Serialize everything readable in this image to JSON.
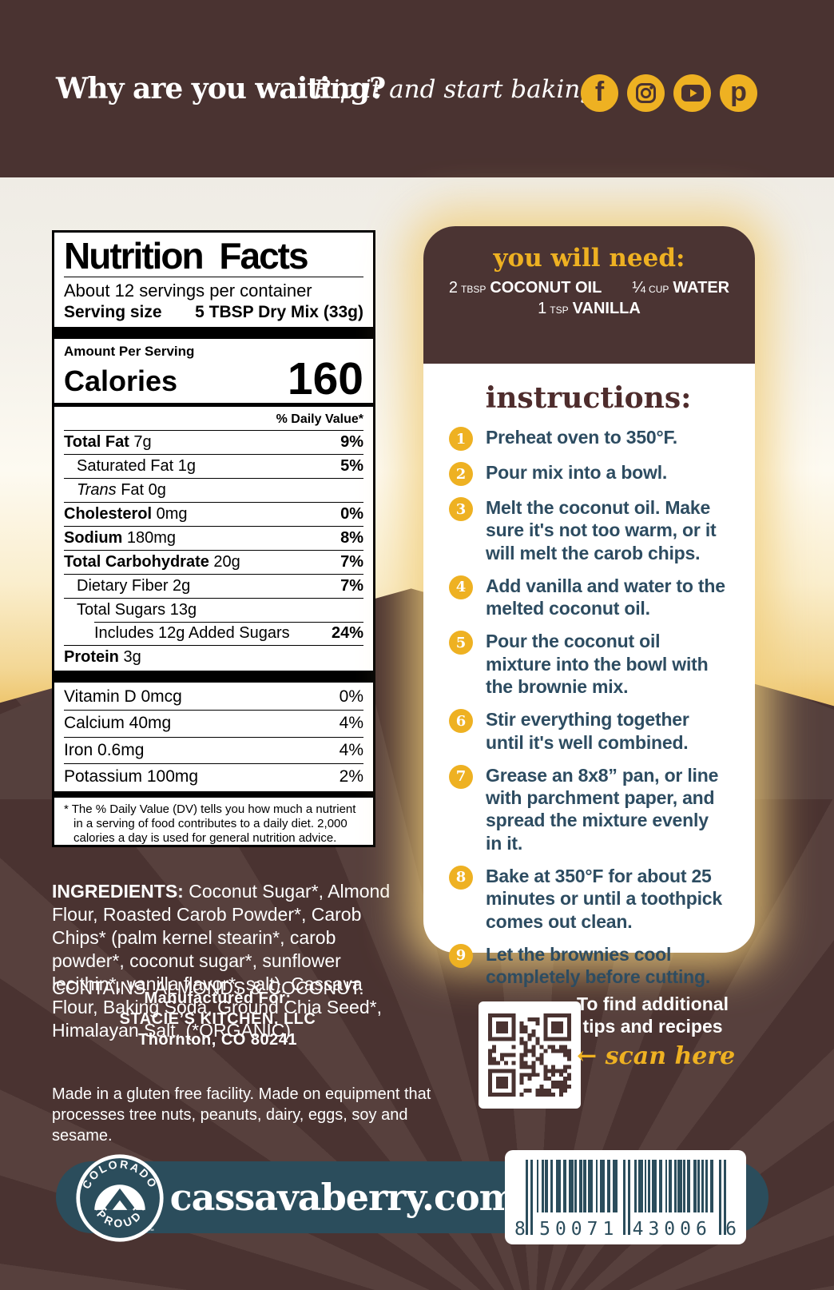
{
  "colors": {
    "brown": "#4a3331",
    "gold": "#eeb122",
    "teal": "#2b4d5c",
    "step_text": "#2d4c61",
    "cream": "#f2efe8"
  },
  "top_banner": {
    "headline": "Why are you waiting?",
    "tagline": "Rip it and start baking!",
    "social": [
      {
        "name": "facebook",
        "glyph": "f"
      },
      {
        "name": "instagram"
      },
      {
        "name": "youtube"
      },
      {
        "name": "pinterest",
        "glyph": "p"
      }
    ]
  },
  "nutrition": {
    "title": "Nutrition Facts",
    "servings_per_container": "About 12 servings per container",
    "serving_size_label": "Serving size",
    "serving_size_value": "5 TBSP Dry Mix (33g)",
    "amount_per_serving": "Amount Per Serving",
    "calories_label": "Calories",
    "calories_value": "160",
    "daily_value_header": "% Daily Value*",
    "rows": [
      {
        "name": "Total Fat",
        "amount": "7g",
        "dv": "9%",
        "strong": true,
        "dv_bold": true
      },
      {
        "name": "Saturated Fat",
        "amount": "1g",
        "dv": "5%",
        "indent": 1,
        "dv_bold": true
      },
      {
        "name": "Trans",
        "rest": "Fat",
        "amount": "0g",
        "indent": 1,
        "italic": true
      },
      {
        "name": "Cholesterol",
        "amount": "0mg",
        "dv": "0%",
        "strong": true,
        "dv_bold": true
      },
      {
        "name": "Sodium",
        "amount": "180mg",
        "dv": "8%",
        "strong": true,
        "dv_bold": true
      },
      {
        "name": "Total Carbohydrate",
        "amount": "20g",
        "dv": "7%",
        "strong": true,
        "dv_bold": true
      },
      {
        "name": "Dietary Fiber",
        "amount": "2g",
        "dv": "7%",
        "indent": 1,
        "dv_bold": true
      },
      {
        "name": "Total Sugars",
        "amount": "13g",
        "indent": 1
      },
      {
        "name": "Includes 12g Added Sugars",
        "dv": "24%",
        "indent": 2,
        "inset_rule": true,
        "dv_bold": true
      },
      {
        "name": "Protein",
        "amount": "3g",
        "strong": true
      }
    ],
    "vitamins": [
      {
        "name": "Vitamin D",
        "amount": "0mcg",
        "dv": "0%"
      },
      {
        "name": "Calcium",
        "amount": "40mg",
        "dv": "4%"
      },
      {
        "name": "Iron",
        "amount": "0.6mg",
        "dv": "4%"
      },
      {
        "name": "Potassium",
        "amount": "100mg",
        "dv": "2%"
      }
    ],
    "footnote": "* The % Daily Value (DV) tells you how much a nutrient in a serving of food contributes to a daily diet. 2,000 calories a day is used for general nutrition advice."
  },
  "ingredients": {
    "label": "INGREDIENTS:",
    "text": "Coconut Sugar*, Almond Flour, Roasted Carob Powder*, Carob Chips* (palm kernel stearin*, carob powder*, coconut sugar*, sunflower lecithin*, vanilla flavor*, salt), Cassava Flour, Baking Soda, Ground Chia Seed*, Himalayan Salt. (*ORGANIC)",
    "contains": "CONTAINS: ALMONDS & COCONUT."
  },
  "manufactured": {
    "line1": "Manufactured For:",
    "line2": "STACIE’S KITCHEN, LLC",
    "line3": "Thornton, CO 80241"
  },
  "facility_note": "Made in a gluten free facility. Made on equipment that processes tree nuts, peanuts, dairy, eggs, soy and sesame.",
  "you_will_need": {
    "title": "you will need:",
    "items": [
      {
        "qty": "2",
        "unit": "TBSP",
        "name": "COCONUT OIL"
      },
      {
        "qty": "¼",
        "unit": "CUP",
        "name": "WATER"
      },
      {
        "qty": "1",
        "unit": "TSP",
        "name": "VANILLA"
      }
    ]
  },
  "instructions": {
    "title": "instructions:",
    "steps": [
      {
        "num": "1",
        "text": "Preheat oven to 350°F."
      },
      {
        "num": "2",
        "text": "Pour mix into a bowl."
      },
      {
        "num": "3",
        "text": "Melt the coconut oil. Make sure it's not too warm, or it will melt the carob chips."
      },
      {
        "num": "4",
        "text": "Add vanilla and water to the melted coconut oil."
      },
      {
        "num": "5",
        "text": "Pour the coconut oil mixture into the bowl with the brownie mix."
      },
      {
        "num": "6",
        "text": "Stir everything together until it's well combined."
      },
      {
        "num": "7",
        "text": "Grease an 8x8” pan, or line with parchment paper, and spread the mixture evenly in it."
      },
      {
        "num": "8",
        "text": "Bake at 350°F for about 25 minutes or until a toothpick comes out clean."
      },
      {
        "num": "9",
        "text": "Let the brownies cool completely before cutting."
      }
    ]
  },
  "qr_section": {
    "line1": "To find additional",
    "line2": "tips and recipes",
    "arrow": "←",
    "cta": "scan here"
  },
  "footer": {
    "website": "cassavaberry.com",
    "badge_top": "COLORADO",
    "badge_bottom": "PROUD",
    "badge_tm": "™",
    "barcode": {
      "left_digit": "8",
      "group1": "50071",
      "group2": "43006",
      "right_digit": "6"
    }
  }
}
